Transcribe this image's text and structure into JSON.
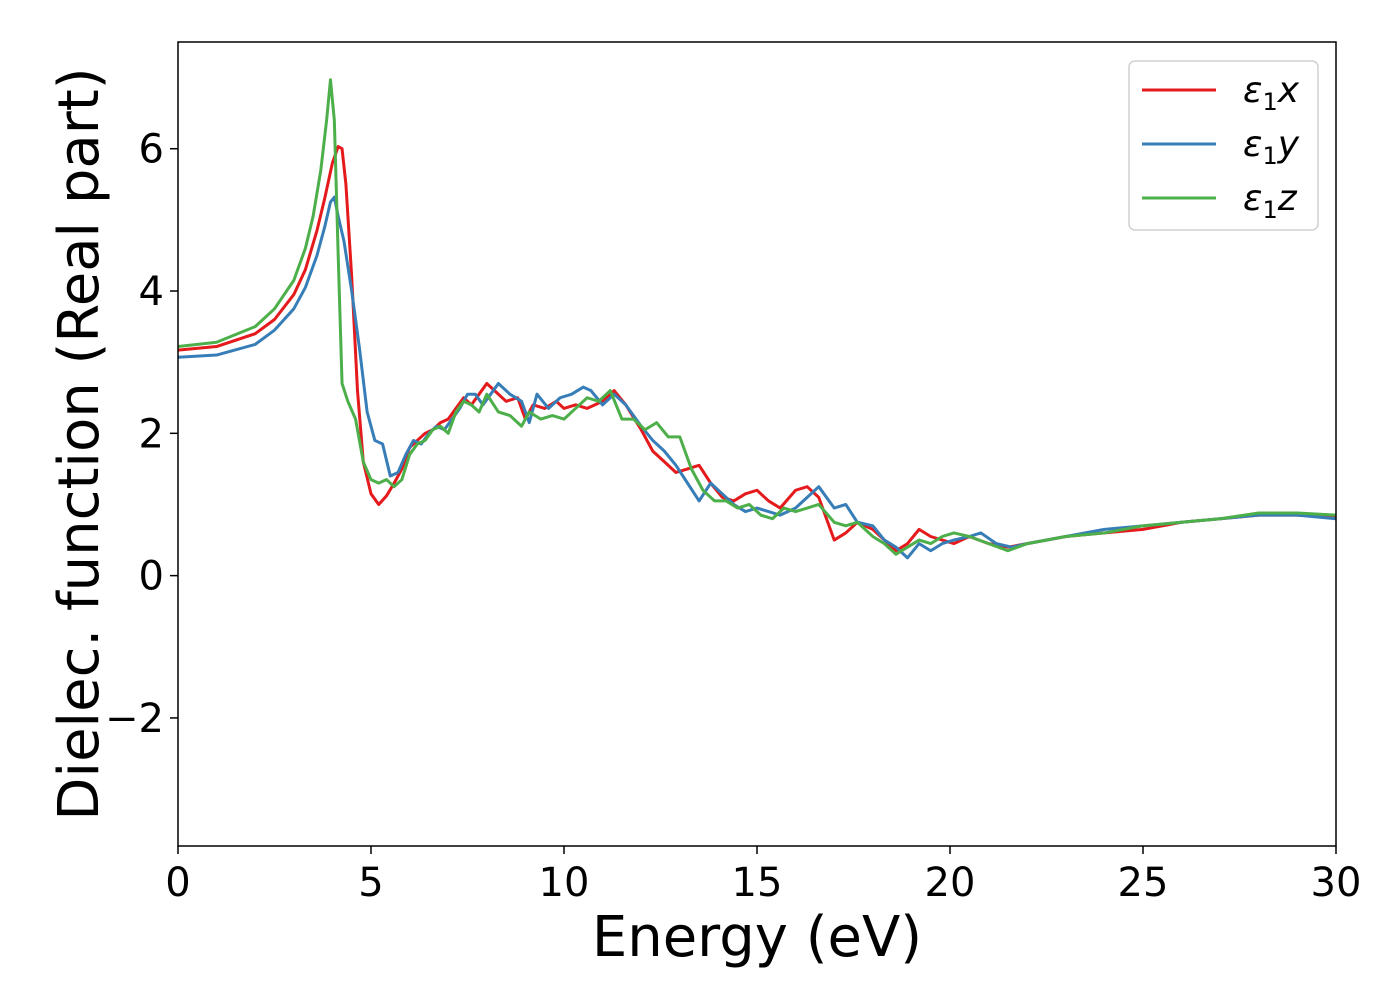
{
  "chart_data": {
    "type": "line",
    "xlabel": "Energy (eV)",
    "ylabel": "Dielec. function (Real part)",
    "xlim": [
      0,
      30
    ],
    "ylim": [
      -3.8,
      7.5
    ],
    "xticks": [
      0,
      5,
      10,
      15,
      20,
      25,
      30
    ],
    "yticks": [
      -2,
      0,
      2,
      4,
      6
    ],
    "grid": false,
    "legend_position": "top-right",
    "series": [
      {
        "name": "ε1x",
        "legend_base": "ε",
        "legend_sub": "1",
        "legend_var": "x",
        "color": "#e41a1c",
        "x": [
          0,
          1,
          2,
          2.5,
          3,
          3.3,
          3.6,
          3.8,
          4.0,
          4.15,
          4.25,
          4.35,
          4.5,
          4.65,
          4.8,
          5.0,
          5.2,
          5.4,
          5.6,
          5.8,
          6.0,
          6.2,
          6.4,
          6.6,
          6.8,
          7.0,
          7.2,
          7.4,
          7.6,
          7.8,
          8.0,
          8.2,
          8.5,
          8.8,
          9.0,
          9.2,
          9.5,
          9.8,
          10.0,
          10.3,
          10.6,
          11.0,
          11.3,
          11.6,
          12.0,
          12.3,
          12.6,
          12.9,
          13.2,
          13.5,
          13.8,
          14.1,
          14.4,
          14.7,
          15.0,
          15.3,
          15.6,
          16.0,
          16.3,
          16.6,
          17.0,
          17.3,
          17.6,
          18.0,
          18.3,
          18.6,
          18.9,
          19.2,
          19.5,
          19.8,
          20.1,
          20.5,
          21.0,
          21.5,
          22.0,
          23.0,
          24.0,
          25.0,
          26.0,
          27.0,
          28.0,
          29.0,
          30.0
        ],
        "y": [
          3.17,
          3.22,
          3.4,
          3.6,
          3.95,
          4.3,
          4.85,
          5.3,
          5.8,
          6.03,
          6.0,
          5.5,
          4.2,
          2.6,
          1.6,
          1.15,
          1.0,
          1.12,
          1.3,
          1.5,
          1.8,
          1.9,
          2.0,
          2.05,
          2.15,
          2.2,
          2.35,
          2.5,
          2.4,
          2.55,
          2.7,
          2.6,
          2.45,
          2.5,
          2.2,
          2.4,
          2.35,
          2.45,
          2.35,
          2.4,
          2.35,
          2.45,
          2.6,
          2.4,
          2.05,
          1.75,
          1.6,
          1.45,
          1.5,
          1.55,
          1.3,
          1.1,
          1.05,
          1.15,
          1.2,
          1.05,
          0.95,
          1.2,
          1.25,
          1.1,
          0.5,
          0.6,
          0.75,
          0.65,
          0.5,
          0.35,
          0.45,
          0.65,
          0.55,
          0.5,
          0.45,
          0.55,
          0.45,
          0.4,
          0.45,
          0.55,
          0.6,
          0.65,
          0.75,
          0.8,
          0.85,
          0.85,
          0.82
        ]
      },
      {
        "name": "ε1y",
        "legend_base": "ε",
        "legend_sub": "1",
        "legend_var": "y",
        "color": "#377eb8",
        "x": [
          0,
          1,
          2,
          2.5,
          3,
          3.3,
          3.6,
          3.8,
          3.95,
          4.05,
          4.15,
          4.3,
          4.5,
          4.7,
          4.9,
          5.1,
          5.3,
          5.5,
          5.7,
          5.9,
          6.1,
          6.3,
          6.5,
          6.7,
          6.9,
          7.1,
          7.3,
          7.5,
          7.7,
          7.9,
          8.1,
          8.3,
          8.6,
          8.9,
          9.1,
          9.3,
          9.6,
          9.9,
          10.2,
          10.5,
          10.7,
          11.0,
          11.3,
          11.6,
          12.0,
          12.3,
          12.6,
          12.9,
          13.2,
          13.5,
          13.8,
          14.1,
          14.4,
          14.7,
          15.0,
          15.3,
          15.6,
          16.0,
          16.3,
          16.6,
          17.0,
          17.3,
          17.6,
          18.0,
          18.3,
          18.6,
          18.9,
          19.2,
          19.5,
          19.8,
          20.1,
          20.5,
          20.8,
          21.2,
          21.6,
          22.0,
          23.0,
          24.0,
          25.0,
          26.0,
          27.0,
          28.0,
          29.0,
          30.0
        ],
        "y": [
          3.07,
          3.1,
          3.25,
          3.45,
          3.75,
          4.05,
          4.5,
          4.9,
          5.25,
          5.32,
          5.05,
          4.7,
          4.0,
          3.2,
          2.3,
          1.9,
          1.85,
          1.4,
          1.45,
          1.7,
          1.9,
          1.85,
          2.0,
          2.1,
          2.05,
          2.2,
          2.35,
          2.55,
          2.55,
          2.4,
          2.55,
          2.7,
          2.55,
          2.45,
          2.15,
          2.55,
          2.35,
          2.5,
          2.55,
          2.65,
          2.6,
          2.4,
          2.55,
          2.4,
          2.1,
          1.9,
          1.75,
          1.55,
          1.3,
          1.05,
          1.3,
          1.15,
          1.0,
          0.9,
          0.95,
          0.9,
          0.85,
          0.95,
          1.1,
          1.25,
          0.95,
          1.0,
          0.75,
          0.7,
          0.5,
          0.4,
          0.25,
          0.45,
          0.35,
          0.45,
          0.5,
          0.55,
          0.6,
          0.45,
          0.4,
          0.45,
          0.55,
          0.65,
          0.7,
          0.75,
          0.8,
          0.85,
          0.85,
          0.8
        ]
      },
      {
        "name": "ε1z",
        "legend_base": "ε",
        "legend_sub": "1",
        "legend_var": "z",
        "color": "#4daf4a",
        "x": [
          0,
          1,
          2,
          2.5,
          3,
          3.3,
          3.5,
          3.7,
          3.85,
          3.95,
          4.05,
          4.15,
          4.25,
          4.4,
          4.6,
          4.8,
          5.0,
          5.2,
          5.4,
          5.6,
          5.8,
          6.0,
          6.2,
          6.4,
          6.6,
          6.8,
          7.0,
          7.2,
          7.4,
          7.6,
          7.8,
          8.0,
          8.3,
          8.6,
          8.9,
          9.1,
          9.4,
          9.7,
          10.0,
          10.3,
          10.6,
          10.9,
          11.2,
          11.5,
          11.8,
          12.1,
          12.4,
          12.7,
          13.0,
          13.3,
          13.6,
          13.9,
          14.2,
          14.5,
          14.8,
          15.1,
          15.4,
          15.7,
          16.0,
          16.3,
          16.6,
          17.0,
          17.3,
          17.6,
          18.0,
          18.3,
          18.6,
          18.9,
          19.2,
          19.5,
          19.8,
          20.1,
          20.5,
          21.0,
          21.5,
          22.0,
          23.0,
          24.0,
          25.0,
          26.0,
          27.0,
          28.0,
          29.0,
          30.0
        ],
        "y": [
          3.22,
          3.28,
          3.5,
          3.75,
          4.15,
          4.6,
          5.05,
          5.7,
          6.4,
          6.97,
          6.4,
          4.5,
          2.7,
          2.45,
          2.2,
          1.6,
          1.35,
          1.3,
          1.35,
          1.25,
          1.35,
          1.7,
          1.85,
          1.9,
          2.05,
          2.1,
          2.0,
          2.3,
          2.45,
          2.4,
          2.3,
          2.55,
          2.3,
          2.25,
          2.1,
          2.3,
          2.2,
          2.25,
          2.2,
          2.35,
          2.5,
          2.45,
          2.6,
          2.2,
          2.2,
          2.05,
          2.15,
          1.95,
          1.95,
          1.5,
          1.2,
          1.05,
          1.05,
          0.95,
          1.0,
          0.85,
          0.8,
          0.95,
          0.9,
          0.95,
          1.0,
          0.75,
          0.7,
          0.75,
          0.55,
          0.45,
          0.3,
          0.4,
          0.5,
          0.45,
          0.55,
          0.6,
          0.55,
          0.45,
          0.35,
          0.45,
          0.55,
          0.6,
          0.7,
          0.75,
          0.8,
          0.88,
          0.88,
          0.85
        ]
      }
    ]
  }
}
